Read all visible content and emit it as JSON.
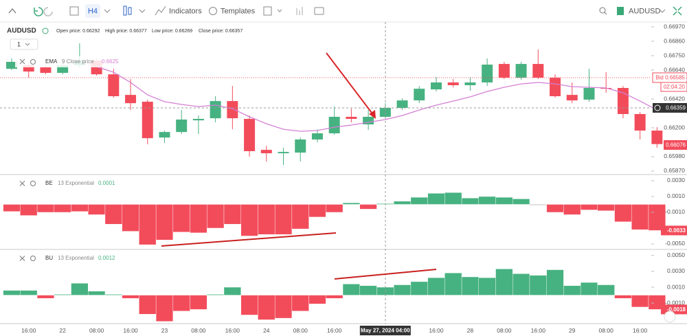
{
  "toolbar": {
    "timeframe": "H4",
    "indicators": "Indicators",
    "templates": "Templates",
    "symbol": "AUDUSD"
  },
  "legend": {
    "symbol": "AUDUSD",
    "open": "Open price: 0.66292",
    "high": "High price: 0.66377",
    "low": "Low price: 0.66269",
    "close": "Close price: 0.66357",
    "interval": "1"
  },
  "price_tags": {
    "bid": "Bid 0.66585",
    "countdown": "02:04:20",
    "crosshair": "0.66359",
    "last": "0.66076"
  },
  "chart_data": [
    {
      "type": "candlestick",
      "categories": [
        null,
        "16:00",
        null,
        "22",
        null,
        "08:00",
        null,
        "16:00",
        null,
        "23",
        null,
        "08:00",
        null,
        "16:00",
        null,
        "24",
        null,
        "08:00",
        null,
        "16:00",
        null,
        null,
        "May 27, 2024 04:00",
        null,
        null,
        "16:00",
        null,
        "28",
        null,
        "08:00",
        null,
        "16:00",
        null,
        "29",
        null,
        "08:00",
        null,
        "16:00",
        null
      ],
      "open": [
        0.6665,
        0.66677,
        0.66661,
        0.66619,
        0.66677,
        0.66713,
        0.66608,
        0.66451,
        0.66399,
        0.66126,
        0.66168,
        0.66257,
        0.66273,
        0.66404,
        0.66268,
        0.66032,
        0.66006,
        0.66011,
        0.66111,
        0.66158,
        0.66284,
        0.66226,
        0.66284,
        0.66352,
        0.66409,
        0.66493,
        0.66546,
        0.66525,
        0.66546,
        0.66687,
        0.66582,
        0.66687,
        0.66582,
        0.66451,
        0.66415,
        0.66504,
        0.66504,
        0.66305,
        0.66179
      ],
      "high": [
        0.66729,
        0.66692,
        0.66677,
        0.66703,
        0.66844,
        0.66729,
        0.6665,
        0.66572,
        0.66415,
        0.66179,
        0.66336,
        0.66294,
        0.66441,
        0.66519,
        0.66294,
        0.66064,
        0.66048,
        0.66126,
        0.66189,
        0.66362,
        0.66346,
        0.66336,
        0.66388,
        0.66425,
        0.66519,
        0.66587,
        0.66572,
        0.66587,
        0.66729,
        0.66703,
        0.66703,
        0.66797,
        0.66608,
        0.66546,
        0.6665,
        0.66624,
        0.66519,
        0.6632,
        0.66205
      ],
      "low": [
        0.6664,
        0.66582,
        0.66608,
        0.66608,
        0.66661,
        0.66598,
        0.6643,
        0.66336,
        0.66074,
        0.66084,
        0.66153,
        0.66153,
        0.66242,
        0.66189,
        0.6598,
        0.65943,
        0.65917,
        0.65943,
        0.6609,
        0.66147,
        0.66242,
        0.66184,
        0.66273,
        0.66336,
        0.66388,
        0.66477,
        0.66509,
        0.66483,
        0.66519,
        0.66572,
        0.66567,
        0.66572,
        0.6643,
        0.66388,
        0.66399,
        0.66467,
        0.66273,
        0.66111,
        0.66048
      ],
      "close": [
        0.66703,
        0.66629,
        0.66619,
        0.66677,
        0.66713,
        0.66608,
        0.66441,
        0.66388,
        0.66121,
        0.66168,
        0.66263,
        0.66268,
        0.66404,
        0.66273,
        0.66022,
        0.66006,
        0.66016,
        0.66111,
        0.66158,
        0.66284,
        0.66268,
        0.66284,
        0.66352,
        0.66409,
        0.66498,
        0.66546,
        0.66525,
        0.66546,
        0.66682,
        0.66582,
        0.66687,
        0.66582,
        0.66441,
        0.66409,
        0.66504,
        0.66498,
        0.66305,
        0.66179,
        0.66076
      ],
      "up_color": "#47b281",
      "down_color": "#f24c5b",
      "series": [
        {
          "name": "EMA",
          "params": "9 Close price",
          "value_label": "0.6625",
          "color": "#d47fd4",
          "values": [
            null,
            null,
            null,
            null,
            null,
            0.66666,
            0.66624,
            0.66546,
            0.66451,
            0.66399,
            0.66378,
            0.66362,
            0.66373,
            0.66346,
            0.66284,
            0.66231,
            0.66189,
            0.66174,
            0.66179,
            0.66205,
            0.66221,
            0.66242,
            0.66263,
            0.66294,
            0.66336,
            0.66373,
            0.66404,
            0.66436,
            0.66477,
            0.66509,
            0.66535,
            0.66546,
            0.66535,
            0.66514,
            0.66509,
            0.66504,
            0.66467,
            0.66404,
            0.66336
          ]
        }
      ],
      "ylim": [
        0.65849,
        0.67007
      ],
      "yticks": [
        {
          "value": 0.6697,
          "label": "0.66970"
        },
        {
          "value": 0.6686,
          "label": "0.66860"
        },
        {
          "value": 0.6675,
          "label": "0.66750"
        },
        {
          "value": 0.6664,
          "label": "0.66640"
        },
        {
          "value": 0.6642,
          "label": "0.66420"
        },
        {
          "value": 0.662,
          "label": "0.66200"
        },
        {
          "value": 0.6598,
          "label": "0.65980"
        },
        {
          "value": 0.6587,
          "label": "0.65870"
        }
      ]
    },
    {
      "type": "bar",
      "name": "BE",
      "params": "13 Exponential",
      "value_label": "0.0001",
      "last_label": "-0.0033",
      "values": [
        -0.0009,
        -0.0014,
        -0.001,
        -0.001,
        -0.0009,
        -0.0013,
        -0.0025,
        -0.0034,
        -0.0051,
        -0.0045,
        -0.0035,
        -0.0036,
        -0.003,
        -0.0025,
        -0.004,
        -0.0038,
        -0.0038,
        -0.0031,
        -0.0016,
        -0.001,
        0.0002,
        -0.0006,
        0.0001,
        0.0004,
        0.0009,
        0.0014,
        0.0015,
        0.0008,
        0.001,
        0.0009,
        0.0007,
        0,
        -0.001,
        -0.0013,
        -0.0007,
        -0.0008,
        -0.0022,
        -0.0032,
        -0.0033
      ],
      "up_color": "#47b281",
      "down_color": "#f24c5b",
      "ylim": [
        -0.00561,
        0.00352
      ],
      "yticks": [
        {
          "value": 0.003,
          "label": "0.0030"
        },
        {
          "value": 0.001,
          "label": "0.0010"
        },
        {
          "value": -0.001,
          "label": "-0.0010"
        },
        {
          "value": -0.005,
          "label": "-0.0050"
        }
      ]
    },
    {
      "type": "bar",
      "name": "BU",
      "params": "13 Exponential",
      "value_label": "0.0012",
      "last_label": "-0.0018",
      "values": [
        0.0006,
        0.0006,
        -0.0004,
        0.0001,
        0.0015,
        0.0005,
        0.0001,
        -0.0004,
        -0.0024,
        -0.0033,
        -0.002,
        -0.0018,
        0.0001,
        0.001,
        -0.0025,
        -0.0031,
        -0.0029,
        -0.002,
        -0.0011,
        -0.0004,
        0.0014,
        0.0012,
        0.001,
        0.0013,
        0.0017,
        0.0022,
        0.0028,
        0.0023,
        0.0022,
        0.0033,
        0.0027,
        0.0025,
        0.0032,
        0.0012,
        0.0016,
        0.0013,
        -0.0004,
        -0.0015,
        -0.0018
      ],
      "up_color": "#47b281",
      "down_color": "#f24c5b",
      "ylim": [
        -0.0035,
        0.0055
      ],
      "yticks": [
        {
          "value": 0.005,
          "label": "0.0050"
        },
        {
          "value": 0.003,
          "label": "0.0030"
        },
        {
          "value": 0.001,
          "label": "0.0010"
        },
        {
          "value": -0.001,
          "label": "-0.0010"
        }
      ]
    }
  ]
}
